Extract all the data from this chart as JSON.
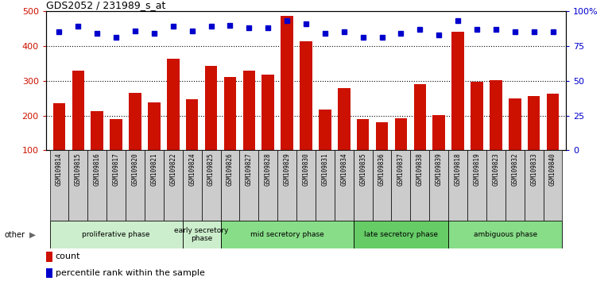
{
  "title": "GDS2052 / 231989_s_at",
  "samples": [
    "GSM109814",
    "GSM109815",
    "GSM109816",
    "GSM109817",
    "GSM109820",
    "GSM109821",
    "GSM109822",
    "GSM109824",
    "GSM109825",
    "GSM109826",
    "GSM109827",
    "GSM109828",
    "GSM109829",
    "GSM109830",
    "GSM109831",
    "GSM109834",
    "GSM109835",
    "GSM109836",
    "GSM109837",
    "GSM109838",
    "GSM109839",
    "GSM109818",
    "GSM109819",
    "GSM109823",
    "GSM109832",
    "GSM109833",
    "GSM109840"
  ],
  "counts": [
    235,
    330,
    213,
    191,
    266,
    238,
    363,
    248,
    342,
    311,
    329,
    318,
    487,
    413,
    218,
    278,
    190,
    180,
    192,
    290,
    201,
    442,
    297,
    302,
    250,
    256,
    262
  ],
  "percentiles_pct": [
    85,
    89,
    84,
    81,
    86,
    84,
    89,
    86,
    89,
    90,
    88,
    88,
    93,
    91,
    84,
    85,
    81,
    81,
    84,
    87,
    83,
    93,
    87,
    87,
    85,
    85,
    85
  ],
  "phases": [
    {
      "name": "proliferative phase",
      "start": 0,
      "end": 7,
      "color": "#cceecc"
    },
    {
      "name": "early secretory\nphase",
      "start": 7,
      "end": 9,
      "color": "#cceecc"
    },
    {
      "name": "mid secretory phase",
      "start": 9,
      "end": 16,
      "color": "#88dd88"
    },
    {
      "name": "late secretory phase",
      "start": 16,
      "end": 21,
      "color": "#66cc66"
    },
    {
      "name": "ambiguous phase",
      "start": 21,
      "end": 27,
      "color": "#88dd88"
    }
  ],
  "bar_color": "#cc1100",
  "marker_color": "#0000cc",
  "ylim_left": [
    100,
    500
  ],
  "ylim_right": [
    0,
    100
  ],
  "yticks_left": [
    100,
    200,
    300,
    400,
    500
  ],
  "yticks_right": [
    0,
    25,
    50,
    75,
    100
  ],
  "ytick_labels_right": [
    "0",
    "25",
    "50",
    "75",
    "100%"
  ],
  "grid_lines": [
    200,
    300,
    400
  ]
}
